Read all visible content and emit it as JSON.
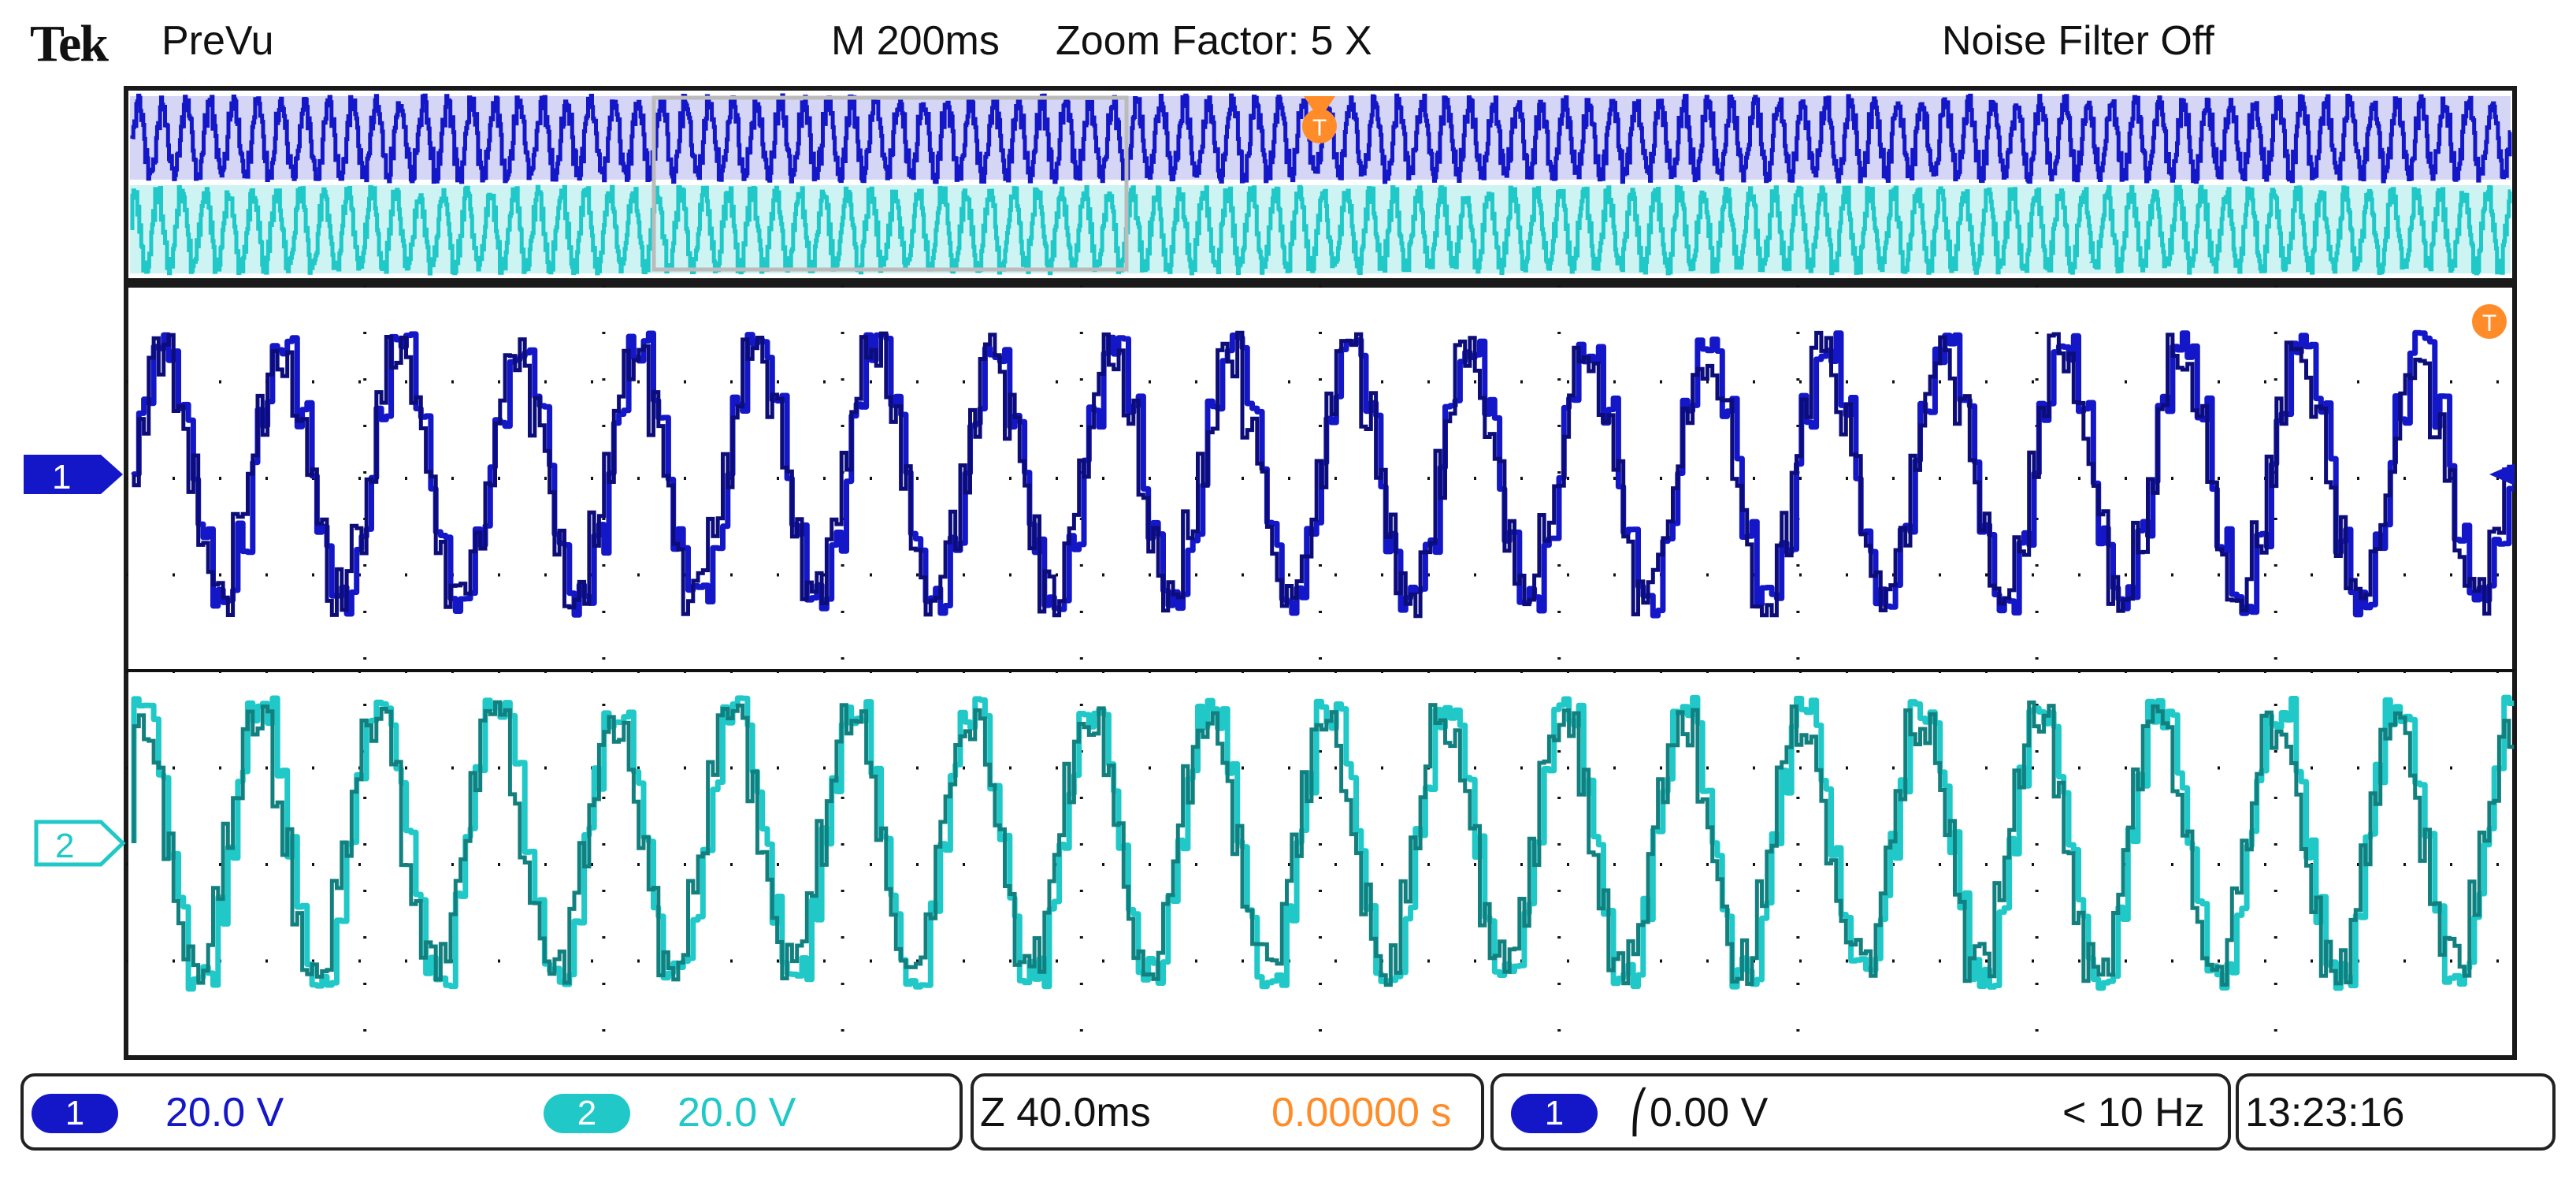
{
  "header": {
    "brand": "Tek",
    "mode": "PreVu",
    "timebase": "M 200ms",
    "zoom": "Zoom Factor: 5 X",
    "noise_filter": "Noise Filter Off"
  },
  "markers": {
    "trigger_top": "T",
    "trigger_right": "T",
    "ch1": "1",
    "ch2": "2"
  },
  "status": {
    "ch1_badge": "1",
    "ch1_scale": "20.0 V",
    "ch2_badge": "2",
    "ch2_scale": "20.0 V",
    "zoom_time": "Z 40.0ms",
    "zoom_offset": "0.00000 s",
    "trigger_badge": "1",
    "trigger_level": "⎛0.00 V",
    "trigger_freq": "< 10 Hz",
    "clock": "13:23:16"
  },
  "colors": {
    "ch1": "#1417c8",
    "ch1_dark": "#0d0d7a",
    "ch2": "#20c8c8",
    "ch2_dark": "#138080",
    "trigger": "#ff8c28",
    "frame": "#1a1a1a"
  }
}
